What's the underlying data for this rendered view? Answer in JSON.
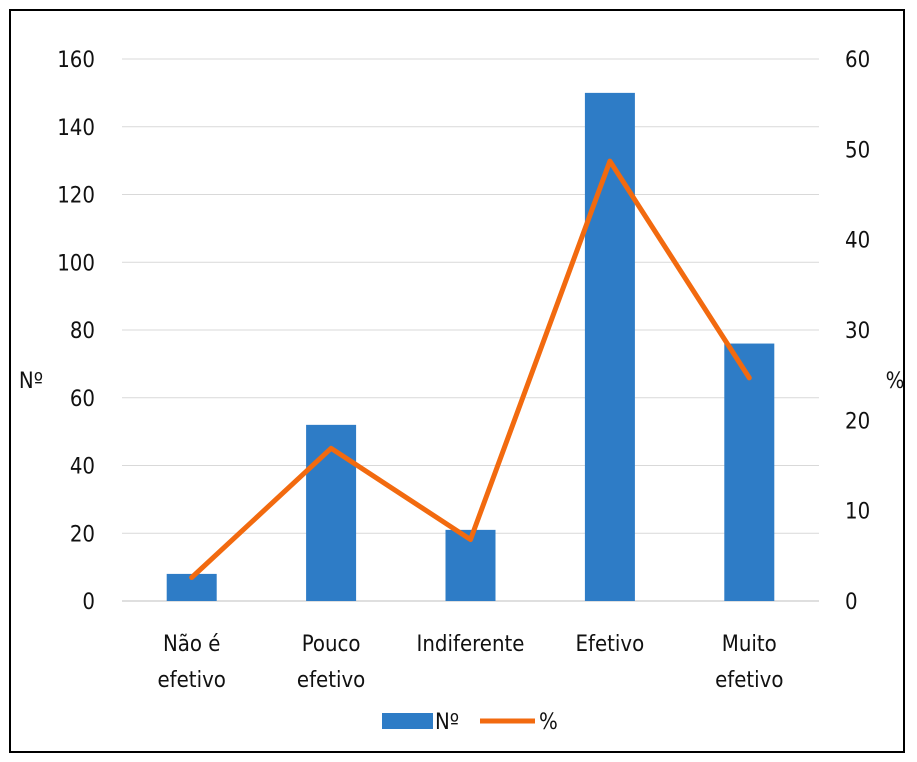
{
  "chart_data": {
    "type": "bar",
    "categories": [
      [
        "Não é",
        "efetivo"
      ],
      [
        "Pouco",
        "efetivo"
      ],
      [
        "Indiferente"
      ],
      [
        "Efetivo"
      ],
      [
        "Muito",
        "efetivo"
      ]
    ],
    "series": [
      {
        "name": "Nº",
        "type": "bar",
        "axis": "left",
        "color": "#2E7CC6",
        "values": [
          8,
          52,
          21,
          150,
          76
        ]
      },
      {
        "name": "%",
        "type": "line",
        "axis": "right",
        "color": "#F26A0F",
        "values": [
          2.6,
          16.9,
          6.8,
          48.7,
          24.7
        ]
      }
    ],
    "y_left": {
      "label": "Nº",
      "min": 0,
      "max": 160,
      "step": 20
    },
    "y_right": {
      "label": "%",
      "min": 0,
      "max": 60,
      "step": 10
    },
    "grid": true,
    "legend": "bottom"
  }
}
